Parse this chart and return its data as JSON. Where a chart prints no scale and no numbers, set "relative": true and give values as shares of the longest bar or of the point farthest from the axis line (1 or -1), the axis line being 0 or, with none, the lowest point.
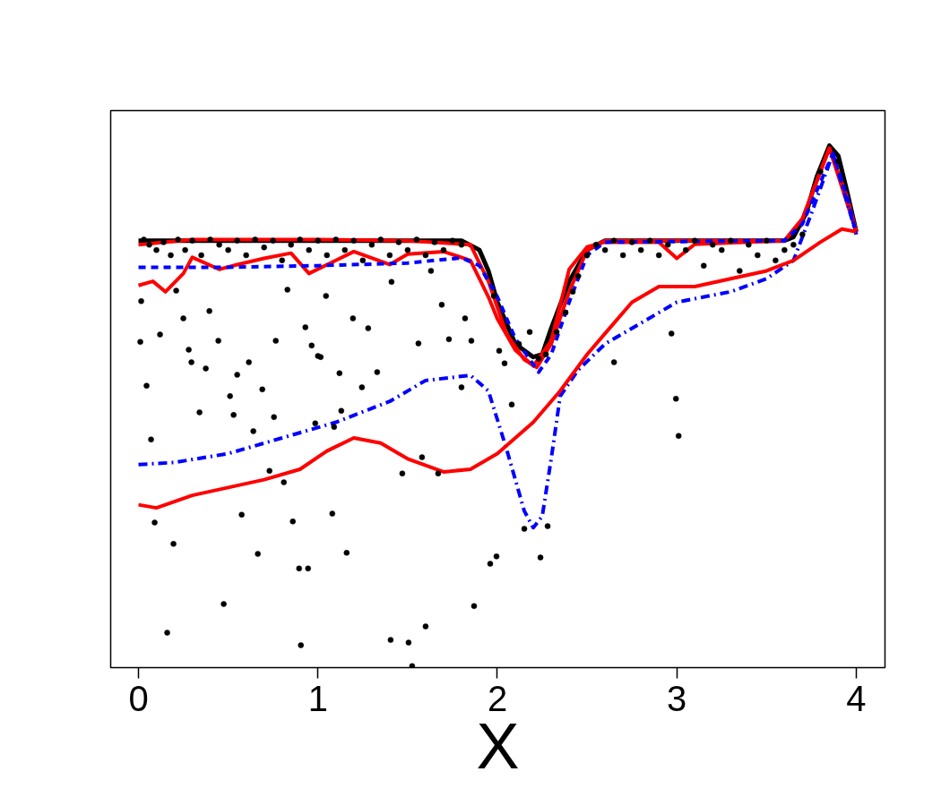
{
  "chart_data": {
    "type": "line",
    "relative": true,
    "xlabel": "X",
    "xlim": [
      -0.155,
      4.16
    ],
    "xticks": [
      0,
      1,
      2,
      3,
      4
    ],
    "tick_labels": "x",
    "series": [
      {
        "type": "scatter",
        "color": "#000000",
        "marker": "circle",
        "x": [
          0.01,
          0.015,
          0.045,
          0.07,
          0.09,
          0.12,
          0.16,
          0.195,
          0.21,
          0.25,
          0.28,
          0.295,
          0.34,
          0.375,
          0.395,
          0.445,
          0.475,
          0.51,
          0.53,
          0.55,
          0.575,
          0.615,
          0.64,
          0.665,
          0.69,
          0.73,
          0.755,
          0.765,
          0.81,
          0.83,
          0.86,
          0.895,
          0.905,
          0.93,
          0.945,
          0.965,
          0.985,
          1.0,
          1.015,
          1.045,
          1.08,
          1.09,
          1.12,
          1.13,
          1.16,
          1.195,
          1.245,
          1.28,
          1.33,
          1.405,
          1.41,
          1.47,
          1.505,
          1.525,
          1.56,
          1.58,
          1.6,
          1.63,
          1.67,
          1.69,
          1.73,
          1.8,
          1.82,
          1.855,
          1.87,
          1.96,
          1.98,
          1.995,
          2.01,
          2.04,
          2.08,
          2.15,
          2.18,
          2.23,
          2.24,
          2.28,
          2.33,
          2.65,
          2.97,
          2.995,
          3.01,
          0.03,
          0.06,
          0.1,
          0.14,
          0.18,
          0.22,
          0.26,
          0.3,
          0.35,
          0.4,
          0.45,
          0.5,
          0.55,
          0.6,
          0.65,
          0.7,
          0.75,
          0.8,
          0.85,
          0.9,
          0.95,
          1.0,
          1.05,
          1.1,
          1.15,
          1.2,
          1.25,
          1.3,
          1.35,
          1.4,
          1.45,
          1.5,
          1.55,
          1.6,
          1.65,
          1.7,
          1.75,
          1.8,
          2.5,
          2.55,
          2.6,
          2.65,
          2.7,
          2.75,
          2.8,
          2.85,
          2.9,
          2.95,
          3.05,
          3.1,
          3.15,
          3.2,
          3.25,
          3.3,
          3.35,
          3.4,
          3.45,
          3.5,
          3.55,
          3.6,
          3.65,
          3.7,
          3.8,
          3.9,
          2.42,
          2.38,
          2.45,
          2.27,
          2.12
        ],
        "values": [
          0.624,
          0.702,
          0.54,
          0.437,
          0.278,
          0.638,
          0.067,
          0.237,
          0.722,
          0.669,
          0.609,
          0.585,
          0.489,
          0.573,
          0.683,
          0.626,
          0.122,
          0.52,
          0.484,
          0.561,
          0.293,
          0.585,
          0.453,
          0.218,
          0.533,
          0.377,
          0.48,
          0.626,
          0.355,
          0.724,
          0.28,
          0.19,
          0.043,
          0.652,
          0.19,
          0.617,
          0.468,
          0.597,
          0.595,
          0.712,
          0.295,
          0.461,
          0.564,
          0.492,
          0.22,
          0.669,
          0.537,
          0.65,
          0.566,
          0.053,
          0.739,
          0.372,
          0.048,
          0.003,
          0.621,
          0.403,
          0.079,
          0.76,
          0.372,
          0.695,
          0.629,
          0.537,
          0.669,
          0.626,
          0.118,
          0.199,
          0.712,
          0.213,
          0.607,
          0.583,
          0.504,
          0.266,
          0.643,
          0.592,
          0.211,
          0.271,
          0.643,
          0.585,
          0.64,
          0.515,
          0.444,
          0.82,
          0.81,
          0.8,
          0.815,
          0.79,
          0.82,
          0.8,
          0.818,
          0.79,
          0.82,
          0.81,
          0.8,
          0.818,
          0.79,
          0.82,
          0.805,
          0.818,
          0.78,
          0.81,
          0.82,
          0.8,
          0.818,
          0.79,
          0.82,
          0.8,
          0.818,
          0.78,
          0.81,
          0.82,
          0.79,
          0.815,
          0.8,
          0.82,
          0.79,
          0.815,
          0.8,
          0.818,
          0.81,
          0.79,
          0.81,
          0.8,
          0.818,
          0.79,
          0.815,
          0.8,
          0.818,
          0.79,
          0.81,
          0.8,
          0.818,
          0.77,
          0.81,
          0.8,
          0.818,
          0.76,
          0.81,
          0.79,
          0.818,
          0.78,
          0.8,
          0.81,
          0.83,
          0.95,
          0.97,
          0.72,
          0.68,
          0.75,
          0.6,
          0.62
        ]
      },
      {
        "color": "#000000",
        "line_style": "solid",
        "x": [
          0,
          1.8,
          1.9,
          1.95,
          2.0,
          2.05,
          2.1,
          2.2,
          2.25,
          2.3,
          2.4,
          2.5,
          2.6,
          3.6,
          3.65,
          3.72,
          3.78,
          3.85,
          3.9,
          3.95,
          4.0
        ],
        "values": [
          0.818,
          0.818,
          0.8,
          0.76,
          0.7,
          0.66,
          0.62,
          0.595,
          0.6,
          0.65,
          0.74,
          0.8,
          0.818,
          0.818,
          0.825,
          0.87,
          0.94,
          1.0,
          0.98,
          0.91,
          0.835
        ]
      },
      {
        "type": "line",
        "color": "#ff0000",
        "line_style": "solid",
        "x": [
          0,
          0.3,
          1.0,
          1.5,
          1.85,
          1.95,
          2.05,
          2.15,
          2.22,
          2.3,
          2.4,
          2.5,
          2.6,
          3.6,
          3.7,
          3.85,
          3.95,
          4.0
        ],
        "values": [
          0.81,
          0.82,
          0.82,
          0.818,
          0.81,
          0.74,
          0.64,
          0.59,
          0.575,
          0.62,
          0.72,
          0.8,
          0.818,
          0.818,
          0.86,
          0.995,
          0.9,
          0.835
        ]
      },
      {
        "type": "line",
        "color": "#ff0000",
        "line_style": "solid",
        "x": [
          0,
          0.08,
          0.15,
          0.25,
          0.3,
          0.45,
          0.55,
          0.7,
          0.85,
          0.95,
          1.1,
          1.2,
          1.4,
          1.5,
          1.7,
          1.85,
          1.95,
          2.0,
          2.1,
          2.2,
          2.3,
          2.4,
          2.5,
          2.6,
          2.9,
          3.0,
          3.1,
          3.6,
          3.7,
          3.85,
          4.0
        ],
        "values": [
          0.732,
          0.74,
          0.72,
          0.755,
          0.786,
          0.763,
          0.772,
          0.784,
          0.794,
          0.755,
          0.78,
          0.797,
          0.772,
          0.792,
          0.797,
          0.78,
          0.71,
          0.668,
          0.608,
          0.578,
          0.626,
          0.763,
          0.806,
          0.815,
          0.815,
          0.784,
          0.811,
          0.818,
          0.86,
          0.995,
          0.835
        ]
      },
      {
        "type": "line",
        "color": "#0000ff",
        "line_style": "dashed",
        "x": [
          0,
          0.5,
          1.0,
          1.5,
          1.8,
          1.9,
          2.0,
          2.1,
          2.23,
          2.3,
          2.4,
          2.5,
          2.6,
          3.6,
          3.7,
          3.87,
          3.95,
          4.0
        ],
        "values": [
          0.767,
          0.767,
          0.77,
          0.775,
          0.785,
          0.77,
          0.71,
          0.63,
          0.566,
          0.6,
          0.7,
          0.79,
          0.815,
          0.818,
          0.85,
          0.985,
          0.9,
          0.83
        ]
      },
      {
        "type": "line",
        "color": "#0000ff",
        "line_style": "dashdot",
        "x": [
          0,
          0.2,
          0.5,
          0.8,
          1.1,
          1.4,
          1.6,
          1.85,
          1.95,
          2.05,
          2.15,
          2.2,
          2.25,
          2.3,
          2.35,
          2.45,
          2.6,
          2.8,
          3.0,
          3.3,
          3.5,
          3.65,
          3.75,
          3.87,
          3.95,
          4.0
        ],
        "values": [
          0.389,
          0.393,
          0.41,
          0.44,
          0.47,
          0.51,
          0.55,
          0.56,
          0.53,
          0.42,
          0.3,
          0.268,
          0.29,
          0.4,
          0.52,
          0.57,
          0.62,
          0.66,
          0.7,
          0.72,
          0.745,
          0.78,
          0.87,
          0.985,
          0.89,
          0.83
        ]
      },
      {
        "type": "line",
        "color": "#ff0000",
        "line_style": "solid",
        "x": [
          0,
          0.1,
          0.3,
          0.5,
          0.7,
          0.9,
          1.05,
          1.2,
          1.35,
          1.5,
          1.7,
          1.85,
          2.0,
          2.1,
          2.2,
          2.35,
          2.5,
          2.6,
          2.75,
          2.9,
          3.1,
          3.3,
          3.5,
          3.65,
          3.8,
          3.92,
          4.0
        ],
        "values": [
          0.312,
          0.306,
          0.33,
          0.345,
          0.36,
          0.38,
          0.415,
          0.44,
          0.43,
          0.4,
          0.375,
          0.38,
          0.41,
          0.44,
          0.47,
          0.53,
          0.6,
          0.64,
          0.7,
          0.73,
          0.73,
          0.745,
          0.76,
          0.78,
          0.815,
          0.84,
          0.835
        ]
      }
    ]
  }
}
